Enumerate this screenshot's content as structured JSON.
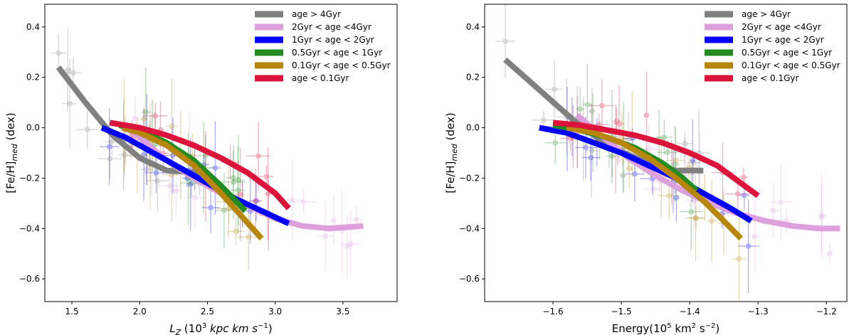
{
  "chart_data": [
    {
      "type": "line",
      "title": "",
      "xlabel": "L_Z (10^3 kpc km s^-1)",
      "xlabel_main": "L",
      "xlabel_sub": "Z",
      "xlabel_rest": " (10",
      "xlabel_exp": "3",
      "xlabel_rest2": " kpc km s",
      "xlabel_exp2": "−1",
      "xlabel_close": ")",
      "ylabel": "[Fe/H]med (dex)",
      "ylabel_main": "[Fe/H]",
      "ylabel_sub": "med",
      "ylabel_rest": " (dex)",
      "xlim": [
        1.3,
        3.9
      ],
      "ylim": [
        -0.69,
        0.49
      ],
      "xticks": [
        1.5,
        2.0,
        2.5,
        3.0,
        3.5
      ],
      "xtick_labels": [
        "1.5",
        "2.0",
        "2.5",
        "3.0",
        "3.5"
      ],
      "yticks": [
        -0.6,
        -0.4,
        -0.2,
        0.0,
        0.2,
        0.4
      ],
      "ytick_labels": [
        "−0.6",
        "−0.4",
        "−0.2",
        "0.0",
        "0.2",
        "0.4"
      ],
      "legend_position": "top-right",
      "series": [
        {
          "name": "age > 4Gyr",
          "color": "#808080",
          "x": [
            1.4,
            1.6,
            1.8,
            2.0,
            2.2,
            2.48
          ],
          "y": [
            0.24,
            0.1,
            -0.03,
            -0.12,
            -0.17,
            -0.18
          ]
        },
        {
          "name": "2Gyr < age <4Gyr",
          "color": "#dda0dd",
          "x": [
            1.88,
            2.0,
            2.2,
            2.4,
            2.6,
            2.8,
            3.0,
            3.2,
            3.4,
            3.65
          ],
          "y": [
            0.01,
            -0.04,
            -0.13,
            -0.2,
            -0.26,
            -0.31,
            -0.36,
            -0.39,
            -0.4,
            -0.39
          ]
        },
        {
          "name": "1Gyr < age < 2Gyr",
          "color": "#0000ff",
          "x": [
            1.72,
            1.9,
            2.1,
            2.3,
            2.5,
            2.7,
            2.9,
            3.1
          ],
          "y": [
            0.0,
            -0.04,
            -0.1,
            -0.16,
            -0.22,
            -0.28,
            -0.33,
            -0.38
          ]
        },
        {
          "name": "0.5Gyr < age < 1Gyr",
          "color": "#228b22",
          "x": [
            1.85,
            2.0,
            2.2,
            2.4,
            2.6,
            2.78
          ],
          "y": [
            0.01,
            -0.01,
            -0.06,
            -0.13,
            -0.23,
            -0.33
          ]
        },
        {
          "name": "0.1Gyr < age < 0.5Gyr",
          "color": "#b8860b",
          "x": [
            1.87,
            2.0,
            2.2,
            2.4,
            2.6,
            2.75,
            2.9
          ],
          "y": [
            0.0,
            -0.02,
            -0.07,
            -0.15,
            -0.26,
            -0.35,
            -0.44
          ]
        },
        {
          "name": "age < 0.1Gyr",
          "color": "#dc143c",
          "x": [
            1.78,
            2.0,
            2.2,
            2.4,
            2.6,
            2.8,
            3.0,
            3.1
          ],
          "y": [
            0.02,
            0.0,
            -0.03,
            -0.07,
            -0.12,
            -0.18,
            -0.26,
            -0.32
          ]
        }
      ]
    },
    {
      "type": "line",
      "title": "",
      "xlabel": "Energy(10^5 km^2 s^-2)",
      "xlabel_main": "Energy(10",
      "xlabel_exp": "5",
      "xlabel_rest": " km",
      "xlabel_exp2": "2",
      "xlabel_rest2": " s",
      "xlabel_exp3": "−2",
      "xlabel_close": ")",
      "ylabel": "[Fe/H]med (dex)",
      "ylabel_main": "[Fe/H]",
      "ylabel_sub": "med",
      "ylabel_rest": " (dex)",
      "xlim": [
        -1.7,
        -1.17
      ],
      "ylim": [
        -0.69,
        0.49
      ],
      "xticks": [
        -1.6,
        -1.5,
        -1.4,
        -1.3,
        -1.2
      ],
      "xtick_labels": [
        "−1.6",
        "−1.5",
        "−1.4",
        "−1.3",
        "−1.2"
      ],
      "yticks": [
        -0.6,
        -0.4,
        -0.2,
        0.0,
        0.2,
        0.4
      ],
      "ytick_labels": [
        "−0.6",
        "−0.4",
        "−0.2",
        "0.0",
        "0.2",
        "0.4"
      ],
      "legend_position": "top-right",
      "series": [
        {
          "name": "age > 4Gyr",
          "color": "#808080",
          "x": [
            -1.67,
            -1.62,
            -1.57,
            -1.52,
            -1.47,
            -1.42,
            -1.38
          ],
          "y": [
            0.27,
            0.15,
            0.03,
            -0.07,
            -0.13,
            -0.17,
            -0.17
          ]
        },
        {
          "name": "2Gyr < age <4Gyr",
          "color": "#dda0dd",
          "x": [
            -1.565,
            -1.53,
            -1.49,
            -1.45,
            -1.41,
            -1.37,
            -1.33,
            -1.29,
            -1.25,
            -1.21,
            -1.18
          ],
          "y": [
            0.05,
            -0.03,
            -0.12,
            -0.19,
            -0.25,
            -0.3,
            -0.34,
            -0.37,
            -0.39,
            -0.4,
            -0.4
          ]
        },
        {
          "name": "1Gyr < age < 2Gyr",
          "color": "#0000ff",
          "x": [
            -1.62,
            -1.58,
            -1.54,
            -1.5,
            -1.46,
            -1.42,
            -1.38,
            -1.34,
            -1.31
          ],
          "y": [
            0.0,
            -0.02,
            -0.06,
            -0.1,
            -0.15,
            -0.2,
            -0.26,
            -0.32,
            -0.37
          ]
        },
        {
          "name": "0.5Gyr < age < 1Gyr",
          "color": "#228b22",
          "x": [
            -1.6,
            -1.56,
            -1.52,
            -1.48,
            -1.44,
            -1.41,
            -1.39
          ],
          "y": [
            0.01,
            -0.01,
            -0.04,
            -0.08,
            -0.14,
            -0.2,
            -0.25
          ]
        },
        {
          "name": "0.1Gyr < age < 0.5Gyr",
          "color": "#b8860b",
          "x": [
            -1.58,
            -1.54,
            -1.5,
            -1.46,
            -1.42,
            -1.38,
            -1.35,
            -1.325
          ],
          "y": [
            0.0,
            -0.02,
            -0.06,
            -0.12,
            -0.2,
            -0.29,
            -0.37,
            -0.44
          ]
        },
        {
          "name": "age < 0.1Gyr",
          "color": "#dc143c",
          "x": [
            -1.6,
            -1.56,
            -1.52,
            -1.48,
            -1.44,
            -1.4,
            -1.36,
            -1.33,
            -1.3
          ],
          "y": [
            0.02,
            0.01,
            -0.01,
            -0.03,
            -0.06,
            -0.1,
            -0.15,
            -0.21,
            -0.27
          ]
        }
      ]
    }
  ]
}
